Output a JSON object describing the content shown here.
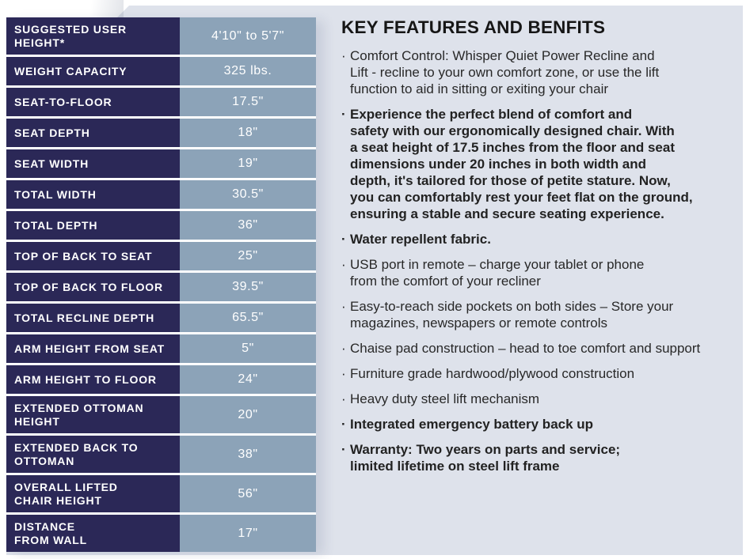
{
  "colors": {
    "navy": "#2b2857",
    "cell_blue": "#8ca3b8",
    "panel": "#dee2eb",
    "text_dark": "#262626"
  },
  "table": {
    "rows": [
      {
        "label": "SUGGESTED USER\nHEIGHT*",
        "value": "4'10\" to 5'7\"",
        "tall": true
      },
      {
        "label": "WEIGHT CAPACITY",
        "value": "325 lbs.",
        "tall": false
      },
      {
        "label": "SEAT-TO-FLOOR",
        "value": "17.5\"",
        "tall": false
      },
      {
        "label": "SEAT DEPTH",
        "value": "18\"",
        "tall": false
      },
      {
        "label": "SEAT WIDTH",
        "value": "19\"",
        "tall": false
      },
      {
        "label": "TOTAL WIDTH",
        "value": "30.5\"",
        "tall": false
      },
      {
        "label": "TOTAL DEPTH",
        "value": "36\"",
        "tall": false
      },
      {
        "label": "TOP OF BACK TO SEAT",
        "value": "25\"",
        "tall": false
      },
      {
        "label": "TOP OF BACK TO FLOOR",
        "value": "39.5\"",
        "tall": false
      },
      {
        "label": "TOTAL RECLINE DEPTH",
        "value": "65.5\"",
        "tall": false
      },
      {
        "label": "ARM HEIGHT FROM SEAT",
        "value": "5\"",
        "tall": false
      },
      {
        "label": "ARM HEIGHT TO FLOOR",
        "value": "24\"",
        "tall": false
      },
      {
        "label": "EXTENDED OTTOMAN\nHEIGHT",
        "value": "20\"",
        "tall": true
      },
      {
        "label": "EXTENDED BACK TO\nOTTOMAN",
        "value": "38\"",
        "tall": true
      },
      {
        "label": "OVERALL LIFTED\nCHAIR HEIGHT",
        "value": "56\"",
        "tall": true
      },
      {
        "label": "DISTANCE\nFROM WALL",
        "value": "17\"",
        "tall": true
      }
    ]
  },
  "features": {
    "title": "KEY FEATURES AND BENFITS",
    "bullet_char": "·",
    "items": [
      {
        "bold": false,
        "text": "Comfort Control: Whisper Quiet Power Recline and\nLift - recline to your own comfort zone, or use the lift\nfunction to aid in sitting or exiting your chair"
      },
      {
        "bold": true,
        "text": "Experience the perfect blend of comfort and\nsafety with our ergonomically designed chair. With\na seat height of 17.5 inches from the floor and seat\ndimensions under 20 inches in both width and\ndepth, it's tailored for those of petite stature. Now,\nyou can comfortably rest your feet flat on the ground,\nensuring a stable and secure seating experience."
      },
      {
        "bold": true,
        "text": "Water repellent fabric."
      },
      {
        "bold": false,
        "text": "USB port in remote – charge your tablet or phone\nfrom the comfort of your recliner"
      },
      {
        "bold": false,
        "text": "Easy-to-reach side pockets on both sides – Store your\nmagazines, newspapers or remote controls"
      },
      {
        "bold": false,
        "text": "Chaise pad construction – head to toe comfort and support"
      },
      {
        "bold": false,
        "text": "Furniture grade hardwood/plywood construction"
      },
      {
        "bold": false,
        "text": "Heavy duty steel lift mechanism"
      },
      {
        "bold": true,
        "text": "Integrated emergency battery back up"
      },
      {
        "bold": true,
        "text": "Warranty: Two years on parts and service;\nlimited lifetime on steel lift frame"
      }
    ]
  }
}
